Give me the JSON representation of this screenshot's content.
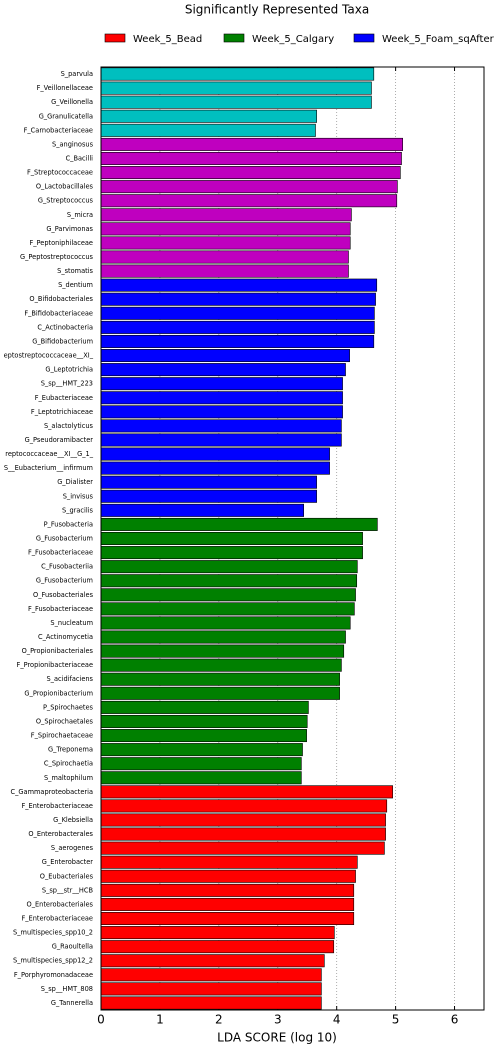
{
  "chart_data": {
    "type": "bar",
    "orientation": "horizontal",
    "title": "Significantly Represented Taxa",
    "xlabel": "LDA SCORE (log 10)",
    "xlim": [
      0,
      6.5
    ],
    "xticks": [
      0,
      1,
      2,
      3,
      4,
      5,
      6
    ],
    "grid": true,
    "legend_order": [
      4,
      3,
      2
    ],
    "series": [
      {
        "color": "#00bfbf",
        "categories": [
          "S_parvula",
          "F_Veillonellaceae",
          "G_Veillonella",
          "G_Granulicatella",
          "F_Carnobacteriaceae"
        ],
        "values": [
          4.63,
          4.59,
          4.59,
          3.66,
          3.64
        ]
      },
      {
        "color": "#bf00bf",
        "categories": [
          "S_anginosus",
          "C_Bacilli",
          "F_Streptococcaceae",
          "O_Lactobacillales",
          "G_Streptococcus",
          "S_micra",
          "G_Parvimonas",
          "F_Peptoniphilaceae",
          "G_Peptostreptococcus",
          "S_stomatis"
        ],
        "values": [
          5.12,
          5.1,
          5.08,
          5.03,
          5.02,
          4.25,
          4.23,
          4.23,
          4.2,
          4.2
        ]
      },
      {
        "name": "Week_5_Foam_sqAfter",
        "color": "#0000ff",
        "categories": [
          "S_dentium",
          "O_Bifidobacteriales",
          "F_Bifidobacteriaceae",
          "C_Actinobacteria",
          "G_Bifidobacterium",
          "eptostreptococcaceae__XI_",
          "G_Leptotrichia",
          "S_sp__HMT_223",
          "F_Eubacteriaceae",
          "F_Leptotrichiaceae",
          "S_alactolyticus",
          "G_Pseudoramibacter",
          "reptococcaceae__XI__G_1_",
          "S__Eubacterium__infirmum",
          "G_Dialister",
          "S_invisus",
          "S_gracilis"
        ],
        "values": [
          4.68,
          4.66,
          4.64,
          4.64,
          4.63,
          4.22,
          4.15,
          4.1,
          4.1,
          4.1,
          4.08,
          4.08,
          3.88,
          3.88,
          3.66,
          3.66,
          3.44
        ]
      },
      {
        "name": "Week_5_Calgary",
        "color": "#008000",
        "categories": [
          "P_Fusobacteria",
          "G_Fusobacterium",
          "F_Fusobacteriaceae",
          "C_Fusobacteriia",
          "G_Fusobacterium",
          "O_Fusobacteriales",
          "F_Fusobacteriaceae",
          "S_nucleatum",
          "C_Actinomycetia",
          "O_Propionibacteriales",
          "F_Propionibacteriaceae",
          "S_acidifaciens",
          "G_Propionibacterium",
          "P_Spirochaetes",
          "O_Spirochaetales",
          "F_Spirochaetaceae",
          "G_Treponema",
          "C_Spirochaetia",
          "S_maltophilum"
        ],
        "values": [
          4.69,
          4.44,
          4.44,
          4.35,
          4.34,
          4.32,
          4.3,
          4.23,
          4.15,
          4.12,
          4.08,
          4.05,
          4.05,
          3.52,
          3.5,
          3.49,
          3.42,
          3.4,
          3.4
        ]
      },
      {
        "name": "Week_5_Bead",
        "color": "#ff0000",
        "categories": [
          "C_Gammaproteobacteria",
          "F_Enterobacteriaceae",
          "G_Klebsiella",
          "O_Enterobacterales",
          "S_aerogenes",
          "G_Enterobacter",
          "O_Eubacteriales",
          "S_sp__str__HCB",
          "O_Enterobacteriales",
          "F_Enterobacteriaceae",
          "S_multispecies_spp10_2",
          "G_Raoultella",
          "S_multispecies_spp12_2",
          "F_Porphyromonadaceae",
          "S_sp__HMT_808",
          "G_Tannerella"
        ],
        "values": [
          4.95,
          4.85,
          4.83,
          4.83,
          4.81,
          4.35,
          4.32,
          4.29,
          4.29,
          4.29,
          3.96,
          3.95,
          3.79,
          3.74,
          3.74,
          3.74
        ]
      }
    ]
  }
}
